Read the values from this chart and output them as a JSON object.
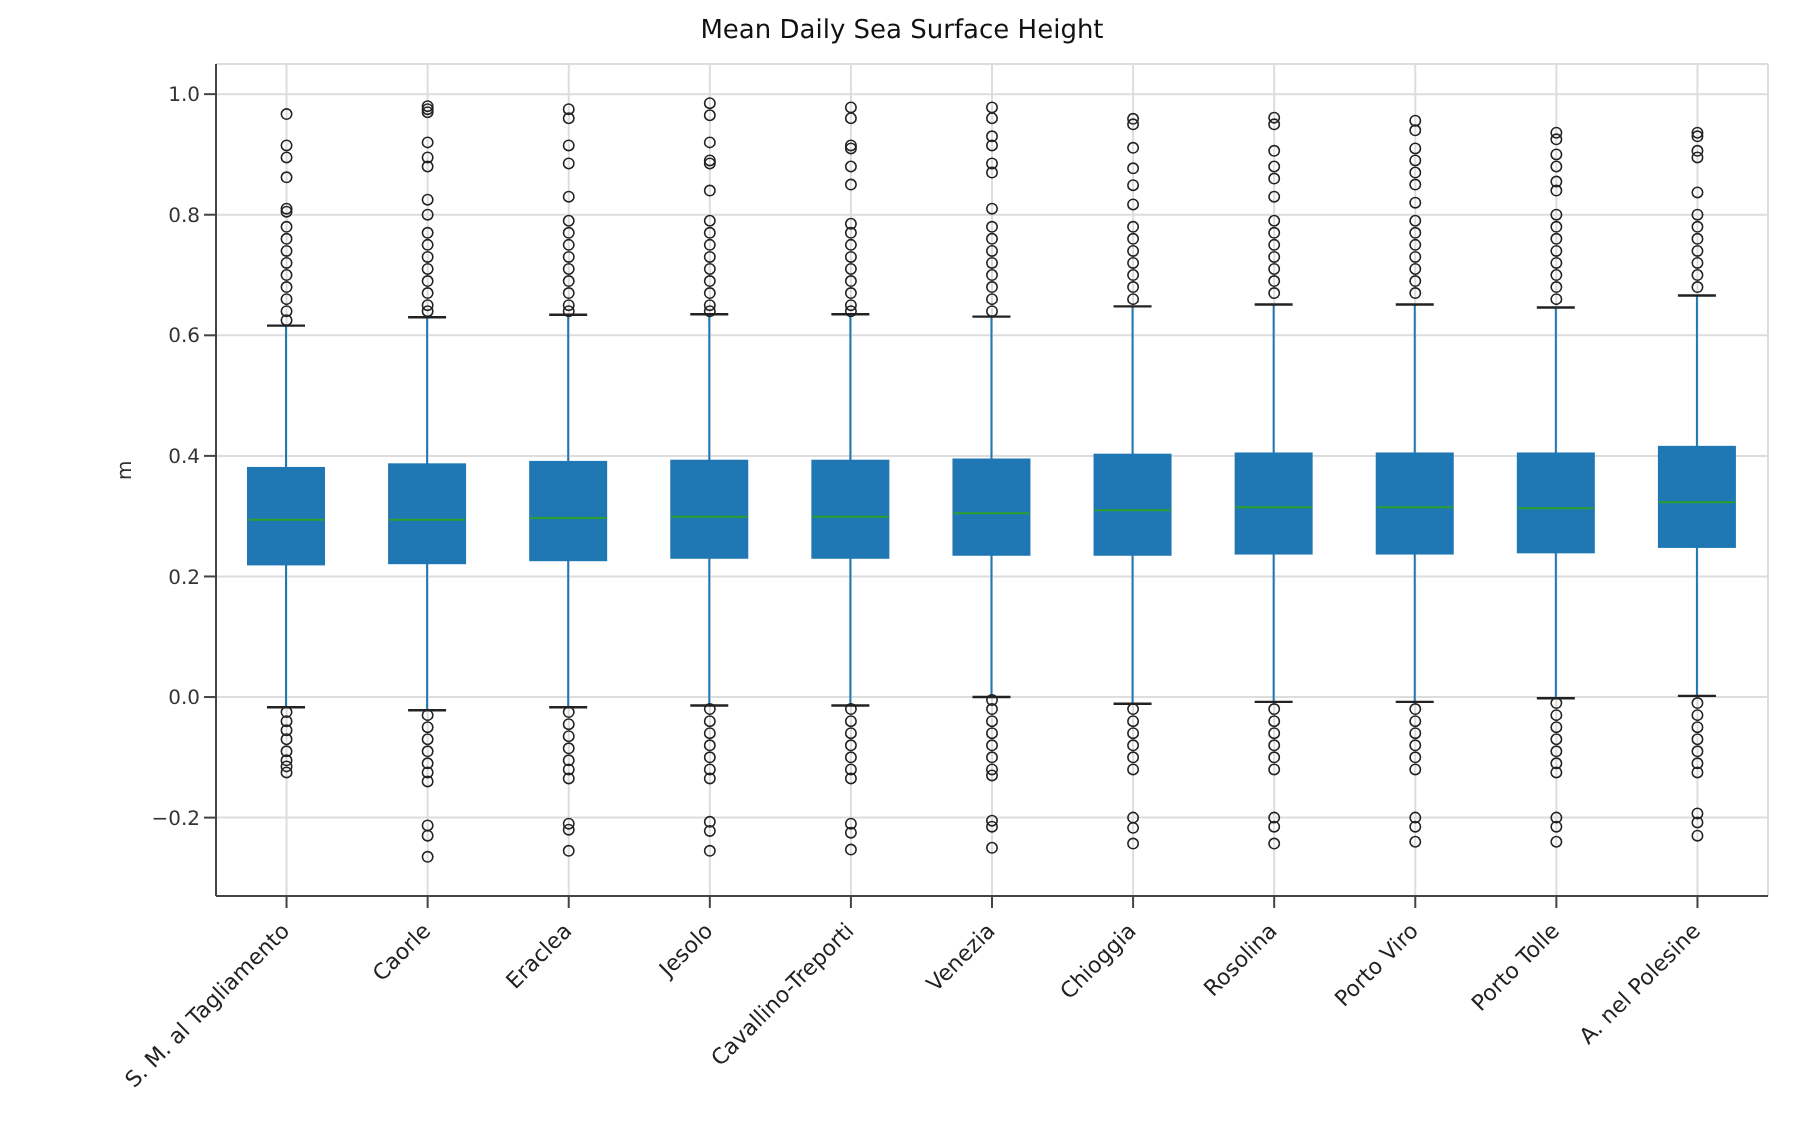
{
  "chart_data": {
    "type": "box",
    "title": "Mean Daily Sea Surface Height",
    "ylabel": "m",
    "color": "#1f77b4",
    "grid": true,
    "categories": [
      "S. M. al Tagliamento",
      "Caorle",
      "Eraclea",
      "Jesolo",
      "Cavallino-Treporti",
      "Venezia",
      "Chioggia",
      "Rosolina",
      "Porto Viro",
      "Porto Tolle",
      "A. nel Polesine"
    ],
    "ylim": [
      -0.33,
      1.05
    ],
    "yticks": [
      {
        "value": -0.2,
        "label": "−0.2"
      },
      {
        "value": 0,
        "label": "0.0"
      },
      0.2,
      0.4,
      0.6,
      0.8,
      {
        "value": 1,
        "label": "1.0"
      }
    ],
    "boxes": [
      {
        "low": -0.017,
        "q1": 0.22,
        "median": 0.294,
        "q3": 0.38,
        "high": 0.616,
        "outliers": [
          0.967,
          0.915,
          0.895,
          0.862,
          0.81,
          0.805,
          0.78,
          0.76,
          0.74,
          0.72,
          0.7,
          0.68,
          0.66,
          0.64,
          0.625,
          -0.025,
          -0.04,
          -0.055,
          -0.07,
          -0.09,
          -0.105,
          -0.115,
          -0.125
        ]
      },
      {
        "low": -0.022,
        "q1": 0.222,
        "median": 0.294,
        "q3": 0.386,
        "high": 0.63,
        "outliers": [
          0.98,
          0.975,
          0.97,
          0.92,
          0.895,
          0.88,
          0.825,
          0.8,
          0.77,
          0.75,
          0.73,
          0.71,
          0.69,
          0.67,
          0.65,
          0.64,
          -0.03,
          -0.05,
          -0.07,
          -0.09,
          -0.11,
          -0.125,
          -0.14,
          -0.213,
          -0.23,
          -0.265
        ]
      },
      {
        "low": -0.017,
        "q1": 0.227,
        "median": 0.297,
        "q3": 0.39,
        "high": 0.634,
        "outliers": [
          0.975,
          0.96,
          0.915,
          0.885,
          0.83,
          0.79,
          0.77,
          0.75,
          0.73,
          0.71,
          0.69,
          0.67,
          0.65,
          0.64,
          -0.025,
          -0.045,
          -0.065,
          -0.085,
          -0.105,
          -0.12,
          -0.135,
          -0.21,
          -0.22,
          -0.255
        ]
      },
      {
        "low": -0.014,
        "q1": 0.231,
        "median": 0.299,
        "q3": 0.392,
        "high": 0.635,
        "outliers": [
          0.985,
          0.965,
          0.92,
          0.89,
          0.885,
          0.84,
          0.79,
          0.77,
          0.75,
          0.73,
          0.71,
          0.69,
          0.67,
          0.65,
          0.64,
          -0.02,
          -0.04,
          -0.06,
          -0.08,
          -0.1,
          -0.12,
          -0.135,
          -0.207,
          -0.222,
          -0.255
        ]
      },
      {
        "low": -0.014,
        "q1": 0.231,
        "median": 0.299,
        "q3": 0.392,
        "high": 0.635,
        "outliers": [
          0.978,
          0.96,
          0.915,
          0.91,
          0.88,
          0.85,
          0.785,
          0.77,
          0.75,
          0.73,
          0.71,
          0.69,
          0.67,
          0.65,
          0.64,
          -0.02,
          -0.04,
          -0.06,
          -0.08,
          -0.1,
          -0.12,
          -0.135,
          -0.21,
          -0.225,
          -0.253
        ]
      },
      {
        "low": 0.0,
        "q1": 0.236,
        "median": 0.305,
        "q3": 0.394,
        "high": 0.631,
        "outliers": [
          0.978,
          0.96,
          0.93,
          0.915,
          0.885,
          0.87,
          0.81,
          0.78,
          0.76,
          0.74,
          0.72,
          0.7,
          0.68,
          0.66,
          0.64,
          -0.005,
          -0.02,
          -0.04,
          -0.06,
          -0.08,
          -0.1,
          -0.12,
          -0.13,
          -0.205,
          -0.215,
          -0.25
        ]
      },
      {
        "low": -0.011,
        "q1": 0.236,
        "median": 0.31,
        "q3": 0.402,
        "high": 0.648,
        "outliers": [
          0.959,
          0.95,
          0.911,
          0.877,
          0.849,
          0.817,
          0.78,
          0.76,
          0.74,
          0.72,
          0.7,
          0.68,
          0.66,
          -0.02,
          -0.04,
          -0.06,
          -0.08,
          -0.1,
          -0.12,
          -0.2,
          -0.217,
          -0.243
        ]
      },
      {
        "low": -0.008,
        "q1": 0.238,
        "median": 0.315,
        "q3": 0.404,
        "high": 0.651,
        "outliers": [
          0.961,
          0.95,
          0.906,
          0.88,
          0.86,
          0.83,
          0.79,
          0.77,
          0.75,
          0.73,
          0.71,
          0.69,
          0.67,
          -0.02,
          -0.04,
          -0.06,
          -0.08,
          -0.1,
          -0.12,
          -0.2,
          -0.215,
          -0.243
        ]
      },
      {
        "low": -0.008,
        "q1": 0.238,
        "median": 0.315,
        "q3": 0.404,
        "high": 0.651,
        "outliers": [
          0.956,
          0.94,
          0.91,
          0.89,
          0.87,
          0.85,
          0.82,
          0.79,
          0.77,
          0.75,
          0.73,
          0.71,
          0.69,
          0.67,
          -0.02,
          -0.04,
          -0.06,
          -0.08,
          -0.1,
          -0.12,
          -0.2,
          -0.215,
          -0.24
        ]
      },
      {
        "low": -0.002,
        "q1": 0.24,
        "median": 0.313,
        "q3": 0.404,
        "high": 0.646,
        "outliers": [
          0.936,
          0.925,
          0.9,
          0.88,
          0.855,
          0.84,
          0.8,
          0.78,
          0.76,
          0.74,
          0.72,
          0.7,
          0.68,
          0.66,
          -0.01,
          -0.03,
          -0.05,
          -0.07,
          -0.09,
          -0.11,
          -0.125,
          -0.2,
          -0.215,
          -0.24
        ]
      },
      {
        "low": 0.002,
        "q1": 0.249,
        "median": 0.323,
        "q3": 0.415,
        "high": 0.666,
        "outliers": [
          0.936,
          0.93,
          0.906,
          0.895,
          0.837,
          0.8,
          0.78,
          0.76,
          0.74,
          0.72,
          0.7,
          0.68,
          -0.01,
          -0.03,
          -0.05,
          -0.07,
          -0.09,
          -0.11,
          -0.125,
          -0.193,
          -0.208,
          -0.23
        ]
      }
    ]
  }
}
